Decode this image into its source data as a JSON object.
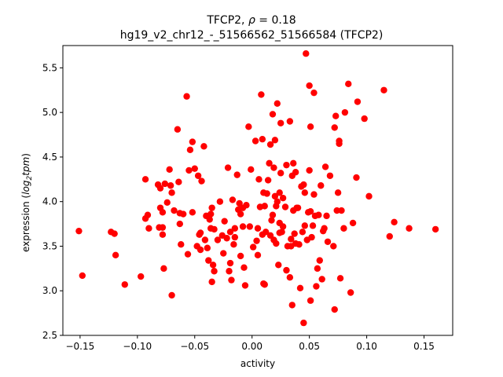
{
  "chart_data": {
    "type": "scatter",
    "title_line1": "TFCP2, ρ = 0.18",
    "title_line2": "hg19_v2_chr12_-_51566562_51566584 (TFCP2)",
    "xlabel": "activity",
    "ylabel": "expression (log2tpm)",
    "xlim": [
      -0.165,
      0.175
    ],
    "ylim": [
      2.5,
      5.75
    ],
    "x_ticks": [
      -0.15,
      -0.1,
      -0.05,
      0.0,
      0.05,
      0.1,
      0.15
    ],
    "x_tick_labels": [
      "−0.15",
      "−0.10",
      "−0.05",
      "0.00",
      "0.05",
      "0.10",
      "0.15"
    ],
    "y_ticks": [
      2.5,
      3.0,
      3.5,
      4.0,
      4.5,
      5.0,
      5.5
    ],
    "y_tick_labels": [
      "2.5",
      "3.0",
      "3.5",
      "4.0",
      "4.5",
      "5.0",
      "5.5"
    ],
    "grid": false,
    "marker_color": "#ff0000",
    "points": [
      [
        -0.151,
        3.67
      ],
      [
        -0.148,
        3.17
      ],
      [
        -0.123,
        3.66
      ],
      [
        -0.12,
        3.64
      ],
      [
        -0.119,
        3.4
      ],
      [
        -0.111,
        3.07
      ],
      [
        -0.097,
        3.16
      ],
      [
        -0.093,
        4.25
      ],
      [
        -0.093,
        3.81
      ],
      [
        -0.091,
        3.85
      ],
      [
        -0.09,
        3.7
      ],
      [
        -0.082,
        4.19
      ],
      [
        -0.08,
        4.15
      ],
      [
        -0.081,
        3.71
      ],
      [
        -0.08,
        3.93
      ],
      [
        -0.078,
        3.63
      ],
      [
        -0.078,
        3.71
      ],
      [
        -0.078,
        3.88
      ],
      [
        -0.077,
        3.25
      ],
      [
        -0.076,
        4.2
      ],
      [
        -0.074,
        3.99
      ],
      [
        -0.072,
        4.36
      ],
      [
        -0.071,
        4.18
      ],
      [
        -0.07,
        2.95
      ],
      [
        -0.07,
        4.1
      ],
      [
        -0.068,
        3.9
      ],
      [
        -0.065,
        4.81
      ],
      [
        -0.064,
        4.22
      ],
      [
        -0.063,
        3.75
      ],
      [
        -0.063,
        3.87
      ],
      [
        -0.062,
        3.52
      ],
      [
        -0.06,
        3.86
      ],
      [
        -0.057,
        5.18
      ],
      [
        -0.056,
        3.41
      ],
      [
        -0.055,
        4.35
      ],
      [
        -0.054,
        4.58
      ],
      [
        -0.052,
        4.67
      ],
      [
        -0.052,
        3.88
      ],
      [
        -0.05,
        4.37
      ],
      [
        -0.048,
        3.5
      ],
      [
        -0.047,
        4.29
      ],
      [
        -0.046,
        3.63
      ],
      [
        -0.045,
        3.46
      ],
      [
        -0.045,
        3.65
      ],
      [
        -0.044,
        4.23
      ],
      [
        -0.042,
        4.62
      ],
      [
        -0.041,
        3.57
      ],
      [
        -0.04,
        3.84
      ],
      [
        -0.039,
        3.48
      ],
      [
        -0.038,
        3.34
      ],
      [
        -0.037,
        3.8
      ],
      [
        -0.036,
        3.7
      ],
      [
        -0.036,
        3.86
      ],
      [
        -0.035,
        3.1
      ],
      [
        -0.035,
        3.93
      ],
      [
        -0.034,
        3.29
      ],
      [
        -0.033,
        3.22
      ],
      [
        -0.033,
        3.69
      ],
      [
        -0.03,
        3.57
      ],
      [
        -0.028,
        4.0
      ],
      [
        -0.026,
        3.62
      ],
      [
        -0.025,
        3.42
      ],
      [
        -0.024,
        3.78
      ],
      [
        -0.022,
        3.59
      ],
      [
        -0.021,
        4.38
      ],
      [
        -0.02,
        3.22
      ],
      [
        -0.019,
        3.31
      ],
      [
        -0.019,
        3.66
      ],
      [
        -0.018,
        3.12
      ],
      [
        -0.017,
        4.02
      ],
      [
        -0.016,
        3.52
      ],
      [
        -0.015,
        3.6
      ],
      [
        -0.015,
        3.7
      ],
      [
        -0.013,
        4.3
      ],
      [
        -0.012,
        3.91
      ],
      [
        -0.011,
        3.98
      ],
      [
        -0.01,
        3.39
      ],
      [
        -0.01,
        3.86
      ],
      [
        -0.008,
        3.72
      ],
      [
        -0.008,
        3.93
      ],
      [
        -0.007,
        3.26
      ],
      [
        -0.006,
        3.06
      ],
      [
        -0.005,
        3.96
      ],
      [
        -0.003,
        4.84
      ],
      [
        -0.002,
        3.72
      ],
      [
        -0.001,
        4.36
      ],
      [
        0.001,
        3.49
      ],
      [
        0.003,
        4.68
      ],
      [
        0.004,
        3.56
      ],
      [
        0.005,
        3.7
      ],
      [
        0.005,
        3.4
      ],
      [
        0.006,
        4.25
      ],
      [
        0.007,
        3.94
      ],
      [
        0.008,
        5.2
      ],
      [
        0.009,
        4.7
      ],
      [
        0.009,
        3.63
      ],
      [
        0.01,
        4.1
      ],
      [
        0.01,
        3.08
      ],
      [
        0.011,
        3.95
      ],
      [
        0.011,
        3.07
      ],
      [
        0.012,
        3.66
      ],
      [
        0.013,
        4.09
      ],
      [
        0.014,
        4.24
      ],
      [
        0.015,
        4.43
      ],
      [
        0.016,
        4.64
      ],
      [
        0.016,
        3.62
      ],
      [
        0.017,
        3.79
      ],
      [
        0.018,
        4.98
      ],
      [
        0.018,
        3.85
      ],
      [
        0.019,
        3.57
      ],
      [
        0.019,
        4.38
      ],
      [
        0.02,
        4.69
      ],
      [
        0.02,
        4.06
      ],
      [
        0.021,
        3.95
      ],
      [
        0.021,
        3.53
      ],
      [
        0.022,
        5.1
      ],
      [
        0.022,
        4.0
      ],
      [
        0.023,
        3.29
      ],
      [
        0.024,
        4.1
      ],
      [
        0.024,
        3.76
      ],
      [
        0.024,
        3.65
      ],
      [
        0.025,
        4.88
      ],
      [
        0.025,
        4.32
      ],
      [
        0.026,
        3.66
      ],
      [
        0.027,
        4.04
      ],
      [
        0.027,
        3.72
      ],
      [
        0.029,
        3.94
      ],
      [
        0.03,
        3.23
      ],
      [
        0.03,
        4.41
      ],
      [
        0.031,
        3.5
      ],
      [
        0.033,
        4.9
      ],
      [
        0.033,
        3.15
      ],
      [
        0.034,
        3.58
      ],
      [
        0.034,
        3.5
      ],
      [
        0.035,
        2.84
      ],
      [
        0.035,
        4.29
      ],
      [
        0.036,
        4.43
      ],
      [
        0.036,
        3.9
      ],
      [
        0.037,
        3.64
      ],
      [
        0.038,
        4.33
      ],
      [
        0.038,
        3.53
      ],
      [
        0.039,
        3.93
      ],
      [
        0.04,
        3.93
      ],
      [
        0.041,
        3.52
      ],
      [
        0.042,
        3.03
      ],
      [
        0.043,
        4.17
      ],
      [
        0.044,
        3.66
      ],
      [
        0.045,
        2.64
      ],
      [
        0.045,
        4.19
      ],
      [
        0.046,
        3.73
      ],
      [
        0.046,
        4.1
      ],
      [
        0.047,
        5.66
      ],
      [
        0.048,
        3.57
      ],
      [
        0.049,
        3.88
      ],
      [
        0.05,
        4.35
      ],
      [
        0.05,
        5.3
      ],
      [
        0.051,
        3.89
      ],
      [
        0.051,
        4.84
      ],
      [
        0.051,
        2.89
      ],
      [
        0.052,
        3.6
      ],
      [
        0.053,
        3.73
      ],
      [
        0.054,
        5.22
      ],
      [
        0.054,
        4.08
      ],
      [
        0.055,
        3.84
      ],
      [
        0.056,
        3.05
      ],
      [
        0.057,
        3.25
      ],
      [
        0.058,
        3.85
      ],
      [
        0.059,
        3.34
      ],
      [
        0.06,
        4.18
      ],
      [
        0.061,
        3.13
      ],
      [
        0.062,
        3.67
      ],
      [
        0.063,
        3.7
      ],
      [
        0.064,
        4.39
      ],
      [
        0.065,
        3.84
      ],
      [
        0.066,
        3.55
      ],
      [
        0.068,
        4.29
      ],
      [
        0.071,
        3.5
      ],
      [
        0.072,
        2.79
      ],
      [
        0.072,
        4.83
      ],
      [
        0.073,
        4.96
      ],
      [
        0.074,
        3.9
      ],
      [
        0.075,
        4.1
      ],
      [
        0.076,
        4.68
      ],
      [
        0.076,
        4.65
      ],
      [
        0.077,
        3.14
      ],
      [
        0.078,
        3.9
      ],
      [
        0.08,
        3.7
      ],
      [
        0.081,
        5.0
      ],
      [
        0.084,
        5.32
      ],
      [
        0.086,
        2.98
      ],
      [
        0.088,
        3.76
      ],
      [
        0.091,
        4.27
      ],
      [
        0.092,
        5.12
      ],
      [
        0.098,
        4.93
      ],
      [
        0.102,
        4.06
      ],
      [
        0.115,
        5.25
      ],
      [
        0.12,
        3.61
      ],
      [
        0.124,
        3.77
      ],
      [
        0.137,
        3.7
      ],
      [
        0.16,
        3.69
      ]
    ]
  }
}
